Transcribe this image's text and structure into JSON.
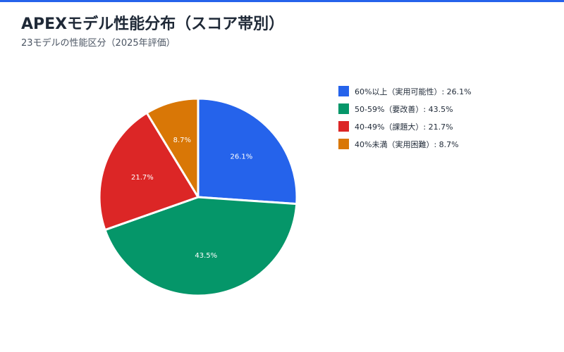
{
  "header": {
    "title": "APEXモデル性能分布（スコア帯別）",
    "subtitle": "23モデルの性能区分（2025年評価）"
  },
  "colors": {
    "accent_bar": "#2563eb"
  },
  "chart_data": {
    "type": "pie",
    "title": "APEXモデル性能分布（スコア帯別）",
    "subtitle": "23モデルの性能区分（2025年評価）",
    "start_angle": "12 o'clock",
    "direction": "clockwise",
    "legend_position": "right",
    "slices": [
      {
        "label": "60%以上（実用可能性）",
        "value": 26.1,
        "value_label": "26.1%",
        "legend": "60%以上（実用可能性）: 26.1%",
        "color": "#2563eb"
      },
      {
        "label": "50-59%（要改善）",
        "value": 43.5,
        "value_label": "43.5%",
        "legend": "50-59%（要改善）: 43.5%",
        "color": "#059669"
      },
      {
        "label": "40-49%（課題大）",
        "value": 21.7,
        "value_label": "21.7%",
        "legend": "40-49%（課題大）: 21.7%",
        "color": "#dc2626"
      },
      {
        "label": "40%未満（実用困難）",
        "value": 8.7,
        "value_label": "8.7%",
        "legend": "40%未満（実用困難）: 8.7%",
        "color": "#d97706"
      }
    ]
  }
}
